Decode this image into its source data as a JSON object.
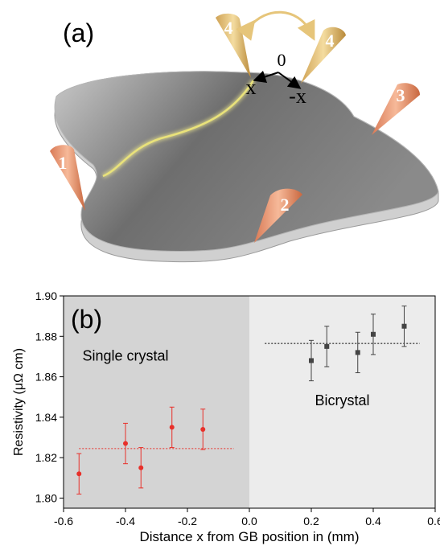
{
  "panel_a": {
    "label": "(a)",
    "probes": [
      "1",
      "2",
      "3",
      "4",
      "4"
    ],
    "origin_label": "0",
    "x_label": "x",
    "neg_x_label": "-x",
    "colors": {
      "probe": "#e9906c",
      "probe4": "#e6c57a",
      "plate": "#8c8c8c",
      "grain_boundary": "#e8e070"
    }
  },
  "chart_data": {
    "type": "scatter",
    "panel_label": "(b)",
    "xlabel": "Distance x from GB position in (mm)",
    "ylabel": "Resistivity (μΩ cm)",
    "xlim": [
      -0.6,
      0.6
    ],
    "ylim": [
      1.795,
      1.9
    ],
    "xticks": [
      -0.6,
      -0.4,
      -0.2,
      0.0,
      0.2,
      0.4,
      0.6
    ],
    "xtick_labels": [
      "-0.6",
      "-0.4",
      "-0.2",
      "0.0",
      "0.2",
      "0.4",
      "0.6"
    ],
    "yticks": [
      1.8,
      1.82,
      1.84,
      1.86,
      1.88,
      1.9
    ],
    "ytick_labels": [
      "1.80",
      "1.82",
      "1.84",
      "1.86",
      "1.88",
      "1.90"
    ],
    "regions": [
      {
        "label": "Single crystal",
        "x_range": [
          -0.6,
          0.0
        ],
        "color": "#d4d4d4"
      },
      {
        "label": "Bicrystal",
        "x_range": [
          0.0,
          0.6
        ],
        "color": "#ececec"
      }
    ],
    "series": [
      {
        "marker": "circle",
        "color": "#e8302a",
        "x": [
          -0.55,
          -0.4,
          -0.35,
          -0.25,
          -0.15
        ],
        "y": [
          1.812,
          1.827,
          1.815,
          1.835,
          1.834
        ],
        "err": [
          0.01,
          0.01,
          0.01,
          0.01,
          0.01
        ],
        "mean": 1.8245,
        "mean_x_range": [
          -0.55,
          -0.05
        ]
      },
      {
        "marker": "square",
        "color": "#444444",
        "x": [
          0.2,
          0.25,
          0.35,
          0.4,
          0.5
        ],
        "y": [
          1.868,
          1.875,
          1.872,
          1.881,
          1.885
        ],
        "err": [
          0.01,
          0.01,
          0.01,
          0.01,
          0.01
        ],
        "mean": 1.8765,
        "mean_x_range": [
          0.05,
          0.55
        ]
      }
    ]
  }
}
